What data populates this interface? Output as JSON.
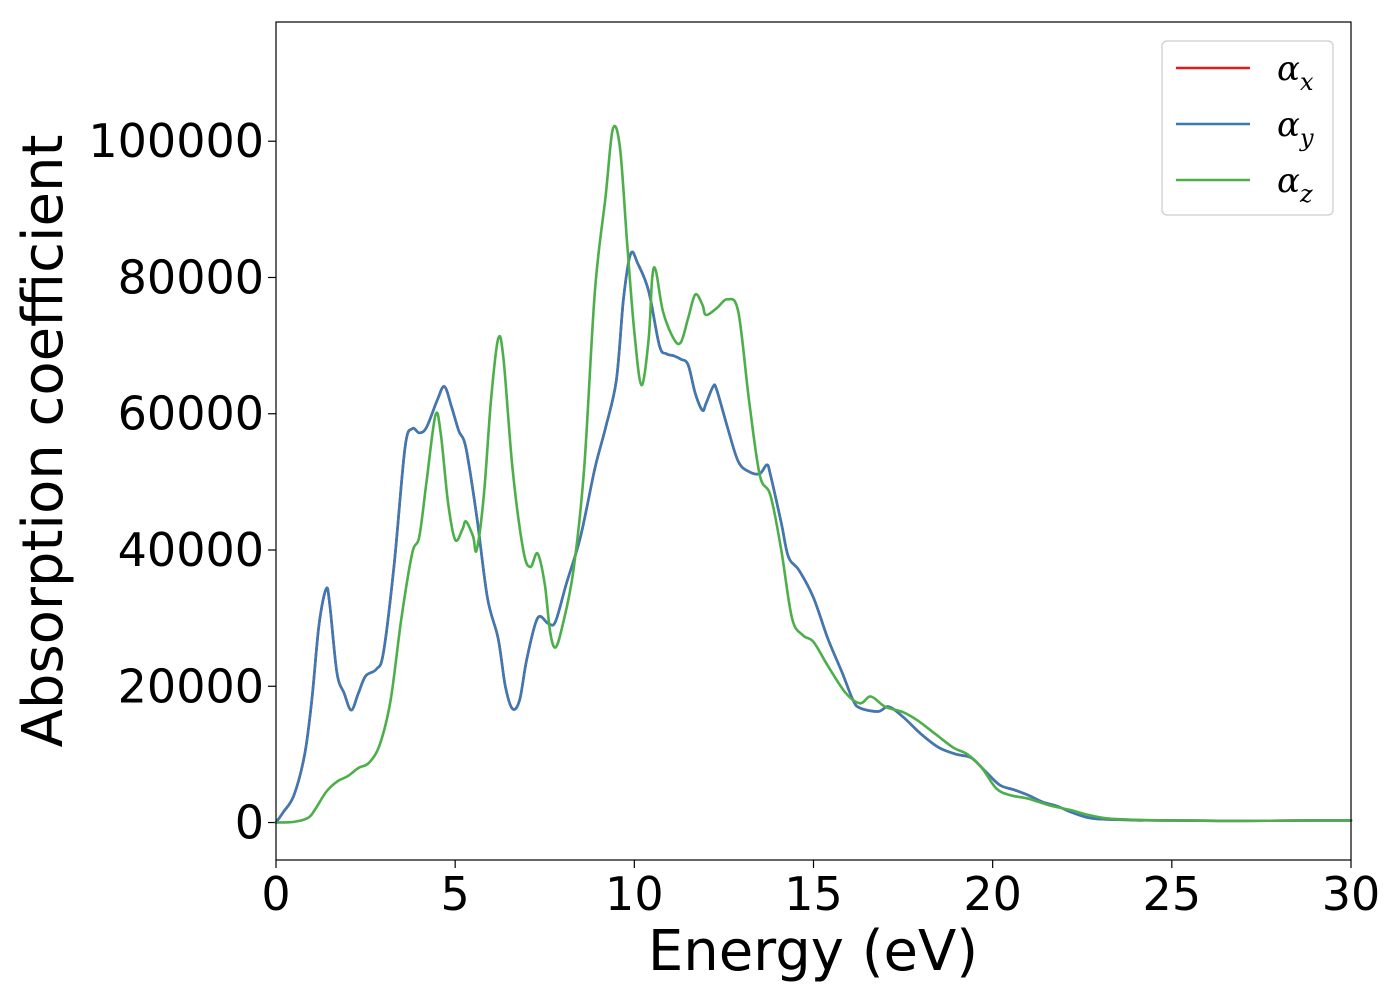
{
  "chart_data": {
    "type": "line",
    "xlabel": "Energy (eV)",
    "ylabel": "Absorption coefficient",
    "xlim": [
      0,
      30
    ],
    "ylim": [
      -5500,
      117500
    ],
    "x_ticks": [
      "0",
      "5",
      "10",
      "15",
      "20",
      "25",
      "30"
    ],
    "y_ticks": [
      "0",
      "20000",
      "40000",
      "60000",
      "80000",
      "100000"
    ],
    "grid": false,
    "legend": "top-right",
    "series": [
      {
        "name": "α",
        "subscript": "x",
        "color": "#e41a1c",
        "points": [
          [
            0,
            0
          ],
          [
            0.2,
            1500
          ],
          [
            0.5,
            4000
          ],
          [
            0.8,
            10000
          ],
          [
            1.0,
            18000
          ],
          [
            1.2,
            29000
          ],
          [
            1.4,
            34300
          ],
          [
            1.5,
            32000
          ],
          [
            1.7,
            22000
          ],
          [
            1.9,
            19000
          ],
          [
            2.1,
            16500
          ],
          [
            2.3,
            19000
          ],
          [
            2.5,
            21500
          ],
          [
            2.8,
            22500
          ],
          [
            3.0,
            25000
          ],
          [
            3.3,
            38000
          ],
          [
            3.6,
            55000
          ],
          [
            3.8,
            57800
          ],
          [
            4.0,
            57200
          ],
          [
            4.2,
            58000
          ],
          [
            4.5,
            62000
          ],
          [
            4.7,
            64000
          ],
          [
            4.9,
            61000
          ],
          [
            5.1,
            57500
          ],
          [
            5.3,
            55000
          ],
          [
            5.6,
            45000
          ],
          [
            5.9,
            33000
          ],
          [
            6.2,
            27000
          ],
          [
            6.4,
            20000
          ],
          [
            6.6,
            16700
          ],
          [
            6.8,
            18000
          ],
          [
            7.0,
            24000
          ],
          [
            7.3,
            30000
          ],
          [
            7.6,
            29200
          ],
          [
            7.8,
            29500
          ],
          [
            8.1,
            35000
          ],
          [
            8.5,
            42000
          ],
          [
            8.9,
            52000
          ],
          [
            9.2,
            58000
          ],
          [
            9.5,
            65000
          ],
          [
            9.7,
            77000
          ],
          [
            9.9,
            83500
          ],
          [
            10.1,
            82000
          ],
          [
            10.4,
            78000
          ],
          [
            10.7,
            70000
          ],
          [
            10.9,
            68800
          ],
          [
            11.1,
            68500
          ],
          [
            11.3,
            68000
          ],
          [
            11.5,
            67200
          ],
          [
            11.7,
            63000
          ],
          [
            11.9,
            60500
          ],
          [
            12.0,
            61500
          ],
          [
            12.2,
            64000
          ],
          [
            12.3,
            63500
          ],
          [
            12.6,
            58000
          ],
          [
            12.9,
            53000
          ],
          [
            13.2,
            51500
          ],
          [
            13.5,
            51200
          ],
          [
            13.7,
            52500
          ],
          [
            13.8,
            51000
          ],
          [
            14.1,
            44000
          ],
          [
            14.3,
            39000
          ],
          [
            14.6,
            37000
          ],
          [
            15.0,
            33000
          ],
          [
            15.4,
            27000
          ],
          [
            15.8,
            22000
          ],
          [
            16.1,
            18000
          ],
          [
            16.3,
            16800
          ],
          [
            16.8,
            16300
          ],
          [
            17.1,
            17000
          ],
          [
            17.5,
            15500
          ],
          [
            18.0,
            13000
          ],
          [
            18.5,
            11000
          ],
          [
            19.0,
            10000
          ],
          [
            19.4,
            9500
          ],
          [
            19.8,
            7500
          ],
          [
            20.2,
            5500
          ],
          [
            20.6,
            4800
          ],
          [
            21.0,
            4000
          ],
          [
            21.4,
            3000
          ],
          [
            21.8,
            2400
          ],
          [
            22.2,
            1500
          ],
          [
            22.6,
            800
          ],
          [
            23.0,
            500
          ],
          [
            24.0,
            350
          ],
          [
            25.0,
            300
          ],
          [
            27.0,
            250
          ],
          [
            29.0,
            300
          ],
          [
            30.0,
            300
          ]
        ]
      },
      {
        "name": "α",
        "subscript": "y",
        "color": "#3b7ab4",
        "points": [
          [
            0,
            0
          ],
          [
            0.2,
            1500
          ],
          [
            0.5,
            4000
          ],
          [
            0.8,
            10000
          ],
          [
            1.0,
            18000
          ],
          [
            1.2,
            29000
          ],
          [
            1.4,
            34300
          ],
          [
            1.5,
            32000
          ],
          [
            1.7,
            22000
          ],
          [
            1.9,
            19000
          ],
          [
            2.1,
            16500
          ],
          [
            2.3,
            19000
          ],
          [
            2.5,
            21500
          ],
          [
            2.8,
            22500
          ],
          [
            3.0,
            25000
          ],
          [
            3.3,
            38000
          ],
          [
            3.6,
            55000
          ],
          [
            3.8,
            57800
          ],
          [
            4.0,
            57200
          ],
          [
            4.2,
            58000
          ],
          [
            4.5,
            62000
          ],
          [
            4.7,
            64000
          ],
          [
            4.9,
            61000
          ],
          [
            5.1,
            57500
          ],
          [
            5.3,
            55000
          ],
          [
            5.6,
            45000
          ],
          [
            5.9,
            33000
          ],
          [
            6.2,
            27000
          ],
          [
            6.4,
            20000
          ],
          [
            6.6,
            16700
          ],
          [
            6.8,
            18000
          ],
          [
            7.0,
            24000
          ],
          [
            7.3,
            30000
          ],
          [
            7.6,
            29200
          ],
          [
            7.8,
            29500
          ],
          [
            8.1,
            35000
          ],
          [
            8.5,
            42000
          ],
          [
            8.9,
            52000
          ],
          [
            9.2,
            58000
          ],
          [
            9.5,
            65000
          ],
          [
            9.7,
            77000
          ],
          [
            9.9,
            83500
          ],
          [
            10.1,
            82000
          ],
          [
            10.4,
            78000
          ],
          [
            10.7,
            70000
          ],
          [
            10.9,
            68800
          ],
          [
            11.1,
            68500
          ],
          [
            11.3,
            68000
          ],
          [
            11.5,
            67200
          ],
          [
            11.7,
            63000
          ],
          [
            11.9,
            60500
          ],
          [
            12.0,
            61500
          ],
          [
            12.2,
            64000
          ],
          [
            12.3,
            63500
          ],
          [
            12.6,
            58000
          ],
          [
            12.9,
            53000
          ],
          [
            13.2,
            51500
          ],
          [
            13.5,
            51200
          ],
          [
            13.7,
            52500
          ],
          [
            13.8,
            51000
          ],
          [
            14.1,
            44000
          ],
          [
            14.3,
            39000
          ],
          [
            14.6,
            37000
          ],
          [
            15.0,
            33000
          ],
          [
            15.4,
            27000
          ],
          [
            15.8,
            22000
          ],
          [
            16.1,
            18000
          ],
          [
            16.3,
            16800
          ],
          [
            16.8,
            16300
          ],
          [
            17.1,
            17000
          ],
          [
            17.5,
            15500
          ],
          [
            18.0,
            13000
          ],
          [
            18.5,
            11000
          ],
          [
            19.0,
            10000
          ],
          [
            19.4,
            9500
          ],
          [
            19.8,
            7500
          ],
          [
            20.2,
            5500
          ],
          [
            20.6,
            4800
          ],
          [
            21.0,
            4000
          ],
          [
            21.4,
            3000
          ],
          [
            21.8,
            2400
          ],
          [
            22.2,
            1500
          ],
          [
            22.6,
            800
          ],
          [
            23.0,
            500
          ],
          [
            24.0,
            350
          ],
          [
            25.0,
            300
          ],
          [
            27.0,
            250
          ],
          [
            29.0,
            300
          ],
          [
            30.0,
            300
          ]
        ]
      },
      {
        "name": "α",
        "subscript": "z",
        "color": "#4daf4a",
        "points": [
          [
            0,
            0
          ],
          [
            0.5,
            100
          ],
          [
            0.9,
            700
          ],
          [
            1.1,
            2000
          ],
          [
            1.4,
            4500
          ],
          [
            1.7,
            6000
          ],
          [
            2.0,
            6800
          ],
          [
            2.3,
            8000
          ],
          [
            2.6,
            8800
          ],
          [
            2.9,
            11500
          ],
          [
            3.2,
            18000
          ],
          [
            3.5,
            30000
          ],
          [
            3.8,
            39500
          ],
          [
            4.0,
            42000
          ],
          [
            4.2,
            50000
          ],
          [
            4.45,
            59800
          ],
          [
            4.6,
            57000
          ],
          [
            4.8,
            47000
          ],
          [
            5.0,
            41500
          ],
          [
            5.2,
            43000
          ],
          [
            5.3,
            44200
          ],
          [
            5.5,
            42000
          ],
          [
            5.6,
            40000
          ],
          [
            5.8,
            48000
          ],
          [
            6.0,
            62000
          ],
          [
            6.2,
            71000
          ],
          [
            6.35,
            68000
          ],
          [
            6.6,
            52000
          ],
          [
            6.9,
            40000
          ],
          [
            7.1,
            37500
          ],
          [
            7.3,
            39500
          ],
          [
            7.5,
            35000
          ],
          [
            7.65,
            28000
          ],
          [
            7.8,
            25700
          ],
          [
            8.0,
            29000
          ],
          [
            8.3,
            37000
          ],
          [
            8.6,
            52000
          ],
          [
            8.9,
            78000
          ],
          [
            9.2,
            92000
          ],
          [
            9.4,
            101800
          ],
          [
            9.6,
            99000
          ],
          [
            9.8,
            85000
          ],
          [
            10.0,
            72000
          ],
          [
            10.2,
            64200
          ],
          [
            10.4,
            71000
          ],
          [
            10.5,
            80000
          ],
          [
            10.6,
            81000
          ],
          [
            10.8,
            75000
          ],
          [
            11.1,
            71000
          ],
          [
            11.3,
            70500
          ],
          [
            11.5,
            74000
          ],
          [
            11.7,
            77500
          ],
          [
            11.9,
            76000
          ],
          [
            12.0,
            74500
          ],
          [
            12.3,
            75500
          ],
          [
            12.6,
            76800
          ],
          [
            12.9,
            75000
          ],
          [
            13.2,
            62000
          ],
          [
            13.5,
            51000
          ],
          [
            13.8,
            48000
          ],
          [
            14.1,
            40000
          ],
          [
            14.4,
            30000
          ],
          [
            14.7,
            27500
          ],
          [
            15.0,
            26500
          ],
          [
            15.4,
            23000
          ],
          [
            15.9,
            19000
          ],
          [
            16.3,
            17500
          ],
          [
            16.6,
            18500
          ],
          [
            17.0,
            17000
          ],
          [
            17.5,
            16200
          ],
          [
            17.9,
            15000
          ],
          [
            18.4,
            13000
          ],
          [
            18.9,
            11000
          ],
          [
            19.3,
            10000
          ],
          [
            19.7,
            8000
          ],
          [
            20.1,
            5000
          ],
          [
            20.5,
            4000
          ],
          [
            21.0,
            3500
          ],
          [
            21.6,
            2500
          ],
          [
            22.2,
            1800
          ],
          [
            22.6,
            1200
          ],
          [
            23.2,
            600
          ],
          [
            24.0,
            400
          ],
          [
            25.0,
            300
          ],
          [
            27.0,
            250
          ],
          [
            29.0,
            300
          ],
          [
            30.0,
            300
          ]
        ]
      }
    ]
  }
}
